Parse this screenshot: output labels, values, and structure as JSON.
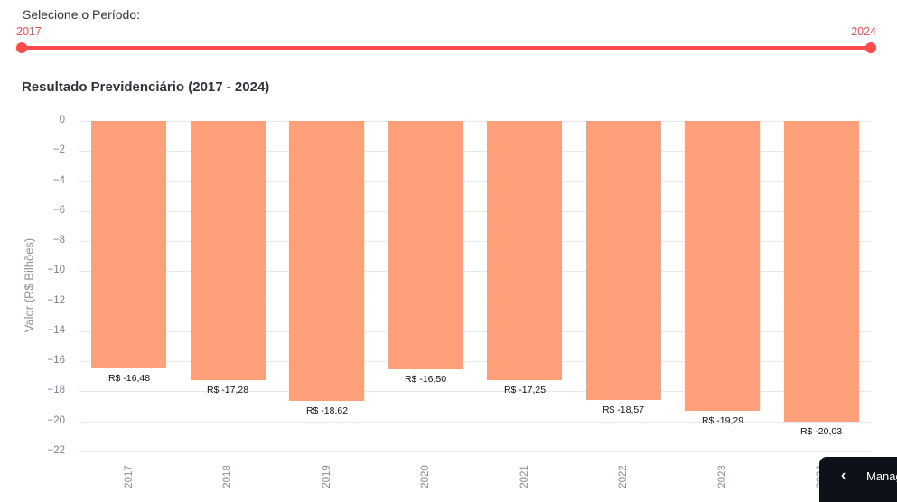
{
  "slider": {
    "label": "Selecione o Período:",
    "min_label": "2017",
    "max_label": "2024",
    "color": "#ff4b4b"
  },
  "chart": {
    "title": "Resultado Previdenciário (2017 - 2024)",
    "ylabel": "Valor (R$ Bilhões)"
  },
  "chart_data": {
    "type": "bar",
    "title": "Resultado Previdenciário (2017 - 2024)",
    "xlabel": "",
    "ylabel": "Valor (R$ Bilhões)",
    "categories": [
      "2017",
      "2018",
      "2019",
      "2020",
      "2021",
      "2022",
      "2023",
      "2024"
    ],
    "values": [
      -16.48,
      -17.28,
      -18.62,
      -16.5,
      -17.25,
      -18.57,
      -19.29,
      -20.03
    ],
    "data_labels": [
      "R$ -16,48",
      "R$ -17,28",
      "R$ -18,62",
      "R$ -16,50",
      "R$ -17,25",
      "R$ -18,57",
      "R$ -19,29",
      "R$ -20,03"
    ],
    "yticks": [
      "0",
      "−2",
      "−4",
      "−6",
      "−8",
      "−10",
      "−12",
      "−14",
      "−16",
      "−18",
      "−20",
      "−22"
    ],
    "ylim": [
      -22,
      0
    ],
    "grid": true,
    "bar_color": "#ffa07a",
    "legend": null
  },
  "manage_button": {
    "icon": "chevron-left-icon",
    "label": "Manage app"
  }
}
